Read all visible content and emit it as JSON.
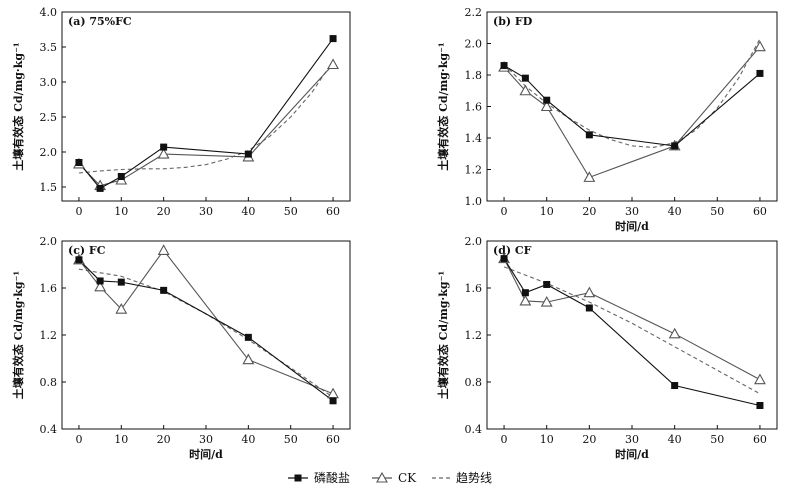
{
  "colors": {
    "phosphate": "#111111",
    "ck": "#555555",
    "trend": "#666666",
    "axis": "#111111"
  },
  "legend": {
    "phosphate": "磷酸盐",
    "ck": "CK",
    "trend": "趋势线"
  },
  "chart_data": [
    {
      "type": "line",
      "title": "(a) 75%FC",
      "xlabel": "",
      "ylabel": "土壤有效态 Cd/mg·kg⁻¹",
      "x": [
        0,
        5,
        10,
        20,
        40,
        60
      ],
      "xticks": [
        "0",
        "10",
        "20",
        "30",
        "40",
        "50",
        "60"
      ],
      "yticks": [
        "1.5",
        "2.0",
        "2.5",
        "3.0",
        "3.5",
        "4.0"
      ],
      "xlim": [
        -4,
        64
      ],
      "ylim": [
        1.3,
        4.0
      ],
      "series": [
        {
          "name": "磷酸盐",
          "values": [
            1.85,
            1.48,
            1.65,
            2.07,
            1.97,
            3.62
          ]
        },
        {
          "name": "CK",
          "values": [
            1.83,
            1.52,
            1.6,
            1.97,
            1.93,
            3.25
          ]
        },
        {
          "name": "趋势线",
          "x": [
            0,
            5,
            10,
            15,
            20,
            25,
            30,
            35,
            40,
            45,
            50,
            55,
            60
          ],
          "values": [
            1.7,
            1.73,
            1.75,
            1.76,
            1.76,
            1.78,
            1.82,
            1.9,
            2.02,
            2.22,
            2.5,
            2.85,
            3.3
          ]
        }
      ]
    },
    {
      "type": "line",
      "title": "(b) FD",
      "xlabel": "时间/d",
      "ylabel": "土壤有效态 Cd/mg·kg⁻¹",
      "x": [
        0,
        5,
        10,
        20,
        40,
        60
      ],
      "xticks": [
        "0",
        "10",
        "20",
        "30",
        "40",
        "50",
        "60"
      ],
      "yticks": [
        "1.0",
        "1.2",
        "1.4",
        "1.6",
        "1.8",
        "2.0",
        "2.2"
      ],
      "xlim": [
        -4,
        64
      ],
      "ylim": [
        1.0,
        2.2
      ],
      "series": [
        {
          "name": "磷酸盐",
          "values": [
            1.86,
            1.78,
            1.64,
            1.42,
            1.35,
            1.81
          ]
        },
        {
          "name": "CK",
          "values": [
            1.85,
            1.7,
            1.6,
            1.15,
            1.35,
            1.98
          ]
        },
        {
          "name": "趋势线",
          "x": [
            0,
            5,
            10,
            15,
            20,
            25,
            30,
            35,
            40,
            45,
            50,
            55,
            60
          ],
          "values": [
            1.87,
            1.73,
            1.62,
            1.53,
            1.45,
            1.39,
            1.35,
            1.34,
            1.37,
            1.45,
            1.59,
            1.78,
            2.03
          ]
        }
      ]
    },
    {
      "type": "line",
      "title": "(c) FC",
      "xlabel": "时间/d",
      "ylabel": "土壤有效态 Cd/mg·kg⁻¹",
      "x": [
        0,
        5,
        10,
        20,
        40,
        60
      ],
      "xticks": [
        "0",
        "10",
        "20",
        "30",
        "40",
        "50",
        "60"
      ],
      "yticks": [
        "0.4",
        "0.8",
        "1.2",
        "1.6",
        "2.0"
      ],
      "xlim": [
        -4,
        64
      ],
      "ylim": [
        0.4,
        2.0
      ],
      "series": [
        {
          "name": "磷酸盐",
          "values": [
            1.84,
            1.66,
            1.65,
            1.58,
            1.18,
            0.64
          ]
        },
        {
          "name": "CK",
          "values": [
            1.84,
            1.61,
            1.42,
            1.92,
            0.99,
            0.7
          ]
        },
        {
          "name": "趋势线",
          "x": [
            0,
            10,
            20,
            30,
            40,
            50,
            60
          ],
          "values": [
            1.76,
            1.7,
            1.57,
            1.38,
            1.16,
            0.92,
            0.67
          ]
        }
      ]
    },
    {
      "type": "line",
      "title": "(d) CF",
      "xlabel": "时间/d",
      "ylabel": "土壤有效态 Cd/mg·kg⁻¹",
      "x": [
        0,
        5,
        10,
        20,
        40,
        60
      ],
      "xticks": [
        "0",
        "10",
        "20",
        "30",
        "40",
        "50",
        "60"
      ],
      "yticks": [
        "0.4",
        "0.8",
        "1.2",
        "1.6",
        "2.0"
      ],
      "xlim": [
        -4,
        64
      ],
      "ylim": [
        0.4,
        2.0
      ],
      "series": [
        {
          "name": "磷酸盐",
          "values": [
            1.85,
            1.56,
            1.63,
            1.43,
            0.77,
            0.6
          ]
        },
        {
          "name": "CK",
          "values": [
            1.85,
            1.49,
            1.48,
            1.56,
            1.21,
            0.82
          ]
        },
        {
          "name": "趋势线",
          "x": [
            0,
            10,
            20,
            30,
            40,
            50,
            60
          ],
          "values": [
            1.78,
            1.64,
            1.48,
            1.3,
            1.1,
            0.9,
            0.7
          ]
        }
      ]
    }
  ]
}
